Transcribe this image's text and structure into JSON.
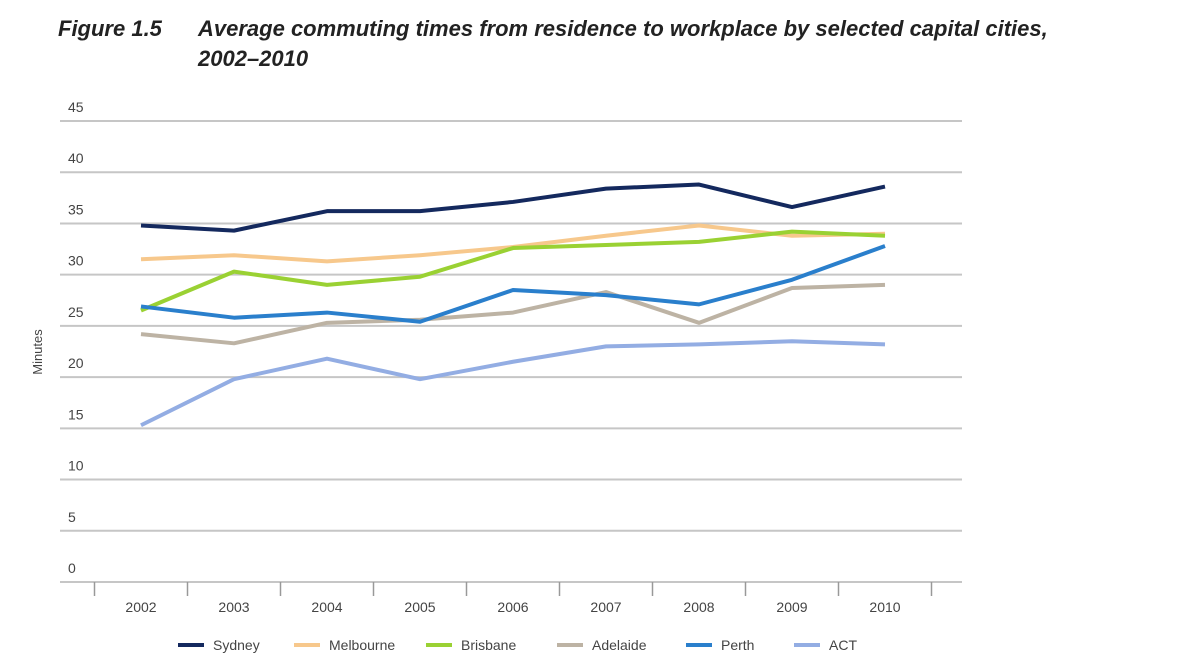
{
  "chart_data": {
    "type": "line",
    "title_label": "Figure 1.5",
    "title": "Average commuting times from residence to workplace by selected capital cities,",
    "title_line2": "2002–2010",
    "xlabel": "",
    "ylabel": "Minutes",
    "ylim": [
      0,
      45
    ],
    "yticks": [
      0,
      5,
      10,
      15,
      20,
      25,
      30,
      35,
      40,
      45
    ],
    "grid": true,
    "legend": "bottom",
    "categories": [
      "2002",
      "2003",
      "2004",
      "2005",
      "2006",
      "2007",
      "2008",
      "2009",
      "2010"
    ],
    "series": [
      {
        "name": "Sydney",
        "color": "#14295e",
        "values": [
          34.8,
          34.3,
          36.2,
          36.2,
          37.1,
          38.4,
          38.8,
          36.6,
          38.6
        ]
      },
      {
        "name": "Melbourne",
        "color": "#f7c88c",
        "values": [
          31.5,
          31.9,
          31.3,
          31.9,
          32.7,
          33.8,
          34.8,
          33.8,
          34.0
        ]
      },
      {
        "name": "Brisbane",
        "color": "#9ad133",
        "values": [
          26.5,
          30.3,
          29.0,
          29.8,
          32.6,
          32.9,
          33.2,
          34.2,
          33.8
        ]
      },
      {
        "name": "Adelaide",
        "color": "#bdb3a4",
        "values": [
          24.2,
          23.3,
          25.3,
          25.6,
          26.3,
          28.3,
          25.3,
          28.7,
          29.0
        ]
      },
      {
        "name": "Perth",
        "color": "#2a7fcc",
        "values": [
          26.9,
          25.8,
          26.3,
          25.4,
          28.5,
          28.0,
          27.1,
          29.5,
          32.8
        ]
      },
      {
        "name": "ACT",
        "color": "#93ade3",
        "values": [
          15.3,
          19.8,
          21.8,
          19.8,
          21.5,
          23.0,
          23.2,
          23.5,
          23.2
        ]
      }
    ]
  }
}
